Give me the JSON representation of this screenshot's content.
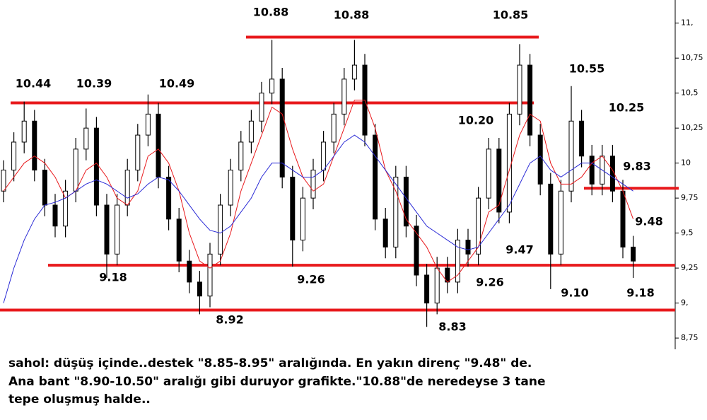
{
  "chart_data": {
    "type": "candlestick",
    "open": [
      9.8,
      9.95,
      10.15,
      10.3,
      9.95,
      9.7,
      9.55,
      9.8,
      10.1,
      10.25,
      9.7,
      9.35,
      9.7,
      9.95,
      10.2,
      10.35,
      9.9,
      9.6,
      9.3,
      9.15,
      9.05,
      9.35,
      9.7,
      9.95,
      10.15,
      10.3,
      10.5,
      10.6,
      9.9,
      9.45,
      9.75,
      9.95,
      10.15,
      10.35,
      10.6,
      10.7,
      10.2,
      9.6,
      9.4,
      9.9,
      9.55,
      9.2,
      9.0,
      9.25,
      9.15,
      9.45,
      9.35,
      9.75,
      10.1,
      9.65,
      10.35,
      10.7,
      10.2,
      9.85,
      9.35,
      9.8,
      10.3,
      10.05,
      9.85,
      10.05,
      9.8,
      9.4
    ],
    "high": [
      10.02,
      10.22,
      10.44,
      10.38,
      10.03,
      9.78,
      9.88,
      10.18,
      10.39,
      10.33,
      9.78,
      9.78,
      10.03,
      10.28,
      10.49,
      10.43,
      9.98,
      9.68,
      9.38,
      9.23,
      9.43,
      9.78,
      10.03,
      10.23,
      10.38,
      10.58,
      10.88,
      10.68,
      9.98,
      9.83,
      10.03,
      10.23,
      10.43,
      10.68,
      10.88,
      10.78,
      10.28,
      9.68,
      9.98,
      9.98,
      9.63,
      9.28,
      9.33,
      9.33,
      9.53,
      9.53,
      9.83,
      10.18,
      10.18,
      10.43,
      10.85,
      10.78,
      10.28,
      9.93,
      9.88,
      10.55,
      10.38,
      10.13,
      10.13,
      10.13,
      9.88,
      9.48
    ],
    "low": [
      9.72,
      9.87,
      10.07,
      9.87,
      9.62,
      9.47,
      9.47,
      9.72,
      10.02,
      9.62,
      9.18,
      9.27,
      9.62,
      9.87,
      10.12,
      9.82,
      9.52,
      9.22,
      9.07,
      8.92,
      8.97,
      9.27,
      9.62,
      9.87,
      10.07,
      10.22,
      10.42,
      9.82,
      9.26,
      9.37,
      9.67,
      9.87,
      10.07,
      10.27,
      10.52,
      10.12,
      9.52,
      9.32,
      9.32,
      9.47,
      9.12,
      8.83,
      8.92,
      9.07,
      9.07,
      9.26,
      9.27,
      9.67,
      9.57,
      9.57,
      10.27,
      10.12,
      9.77,
      9.1,
      9.27,
      9.72,
      9.97,
      9.77,
      9.77,
      9.72,
      9.32,
      9.18
    ],
    "close": [
      9.95,
      10.15,
      10.3,
      9.95,
      9.7,
      9.55,
      9.8,
      10.1,
      10.25,
      9.7,
      9.35,
      9.7,
      9.95,
      10.2,
      10.35,
      9.9,
      9.6,
      9.3,
      9.15,
      9.05,
      9.35,
      9.7,
      9.95,
      10.15,
      10.3,
      10.5,
      10.6,
      9.9,
      9.45,
      9.75,
      9.95,
      10.15,
      10.35,
      10.6,
      10.7,
      10.2,
      9.6,
      9.4,
      9.9,
      9.55,
      9.2,
      9.0,
      9.25,
      9.15,
      9.45,
      9.35,
      9.75,
      10.1,
      9.65,
      10.35,
      10.7,
      10.2,
      9.85,
      9.35,
      9.8,
      10.3,
      10.05,
      9.85,
      10.05,
      9.8,
      9.4,
      9.3
    ],
    "up_color": "#ffffff",
    "down_color": "#000000",
    "candle_edge": "#000000",
    "averages": [
      {
        "color": "#e8191c",
        "values": [
          9.8,
          9.9,
          10.0,
          10.05,
          10.0,
          9.9,
          9.75,
          9.8,
          9.95,
          10.0,
          9.9,
          9.75,
          9.7,
          9.8,
          10.05,
          10.1,
          10.0,
          9.8,
          9.5,
          9.3,
          9.25,
          9.3,
          9.5,
          9.8,
          10.0,
          10.2,
          10.4,
          10.35,
          10.1,
          9.9,
          9.8,
          9.85,
          10.05,
          10.25,
          10.45,
          10.45,
          10.25,
          9.95,
          9.8,
          9.6,
          9.5,
          9.4,
          9.25,
          9.15,
          9.2,
          9.3,
          9.4,
          9.65,
          9.7,
          9.95,
          10.2,
          10.35,
          10.3,
          10.0,
          9.85,
          9.85,
          9.9,
          10.0,
          10.05,
          9.95,
          9.8,
          9.6
        ]
      },
      {
        "color": "#2a2ad6",
        "values": [
          9.0,
          9.25,
          9.45,
          9.6,
          9.7,
          9.72,
          9.75,
          9.8,
          9.85,
          9.88,
          9.85,
          9.8,
          9.75,
          9.78,
          9.85,
          9.9,
          9.88,
          9.8,
          9.7,
          9.6,
          9.52,
          9.5,
          9.55,
          9.65,
          9.75,
          9.9,
          10.0,
          10.0,
          9.95,
          9.9,
          9.9,
          9.95,
          10.05,
          10.15,
          10.2,
          10.15,
          10.05,
          9.95,
          9.85,
          9.75,
          9.65,
          9.55,
          9.5,
          9.45,
          9.4,
          9.38,
          9.4,
          9.5,
          9.6,
          9.7,
          9.85,
          10.0,
          10.05,
          9.95,
          9.9,
          9.95,
          10.0,
          10.0,
          9.95,
          9.9,
          9.85,
          9.8
        ]
      }
    ],
    "levels": [
      10.43,
      10.9,
      9.82,
      9.27,
      8.95
    ],
    "level_color": "#e8191c",
    "annotations": [
      "10.88",
      "10.88",
      "10.85",
      "10.44",
      "10.39",
      "10.49",
      "10.55",
      "10.20",
      "10.25",
      "9.83",
      "9.48",
      "9.47",
      "9.18",
      "9.26",
      "9.26",
      "9.10",
      "9.18",
      "8.92",
      "8.83"
    ],
    "ylim": [
      8.7,
      11.15
    ],
    "yticks": [
      {
        "value": 11,
        "label": "11,"
      },
      {
        "value": 10.75,
        "label": "10,75"
      },
      {
        "value": 10.5,
        "label": "10,5"
      },
      {
        "value": 10.25,
        "label": "10,25"
      },
      10,
      {
        "value": 9.75,
        "label": "9,75"
      },
      {
        "value": 9.5,
        "label": "9,5"
      },
      {
        "value": 9.25,
        "label": "9,25"
      },
      {
        "value": 9,
        "label": "9,"
      },
      {
        "value": 8.75,
        "label": "8,75"
      }
    ]
  },
  "caption": [
    "sahol: düşüş içinde..destek \"8.85-8.95\" aralığında. En yakın direnç \"9.48\" de.",
    "Ana bant \"8.90-10.50\" aralığı gibi duruyor grafikte.\"10.88\"de neredeyse 3 tane",
    "tepe oluşmuş halde.."
  ]
}
